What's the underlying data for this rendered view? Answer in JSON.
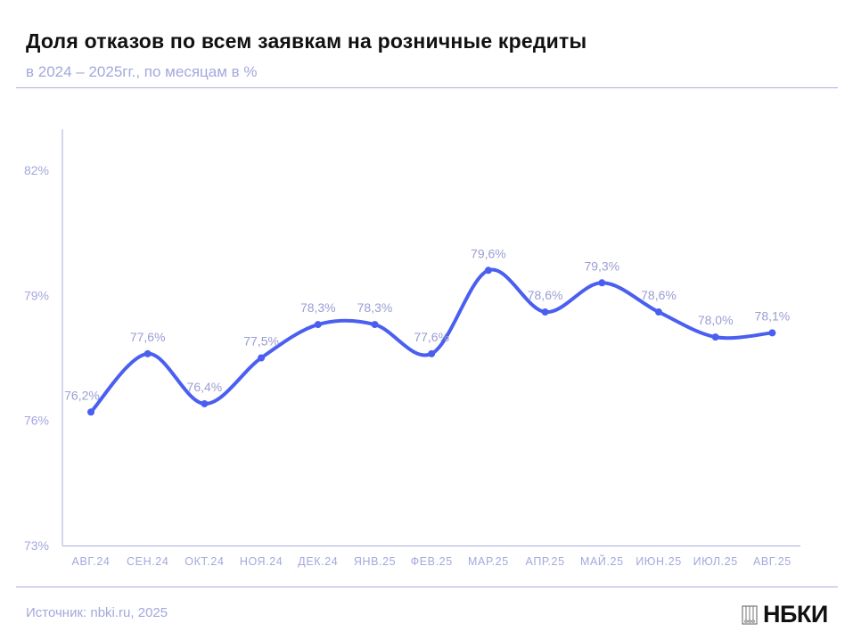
{
  "title": "Доля отказов по всем заявкам на розничные кредиты",
  "subtitle": "в 2024 – 2025гг., по месяцам в %",
  "source": "Источник: nbki.ru, 2025",
  "logo": "НБКИ",
  "colors": {
    "line": "#4a5ff0",
    "labels": "#a3a8dc"
  },
  "chart_data": {
    "type": "line",
    "title": "Доля отказов по всем заявкам на розничные кредиты",
    "subtitle": "в 2024 – 2025гг., по месяцам в %",
    "categories": [
      "АВГ.24",
      "СЕН.24",
      "ОКТ.24",
      "НОЯ.24",
      "ДЕК.24",
      "ЯНВ.25",
      "ФЕВ.25",
      "МАР.25",
      "АПР.25",
      "МАЙ.25",
      "ИЮН.25",
      "ИЮЛ.25",
      "АВГ.25"
    ],
    "values": [
      76.2,
      77.6,
      76.4,
      77.5,
      78.3,
      78.3,
      77.6,
      79.6,
      78.6,
      79.3,
      78.6,
      78.0,
      78.1
    ],
    "data_labels": [
      "76,2%",
      "77,6%",
      "76,4%",
      "77,5%",
      "78,3%",
      "78,3%",
      "77,6%",
      "79,6%",
      "78,6%",
      "79,3%",
      "78,6%",
      "78,0%",
      "78,1%"
    ],
    "yticks": [
      73,
      76,
      79,
      82
    ],
    "ytick_labels": [
      "73%",
      "76%",
      "79%",
      "82%"
    ],
    "ylim": [
      73,
      82
    ],
    "grid": false,
    "smooth": true,
    "legend": "none"
  }
}
